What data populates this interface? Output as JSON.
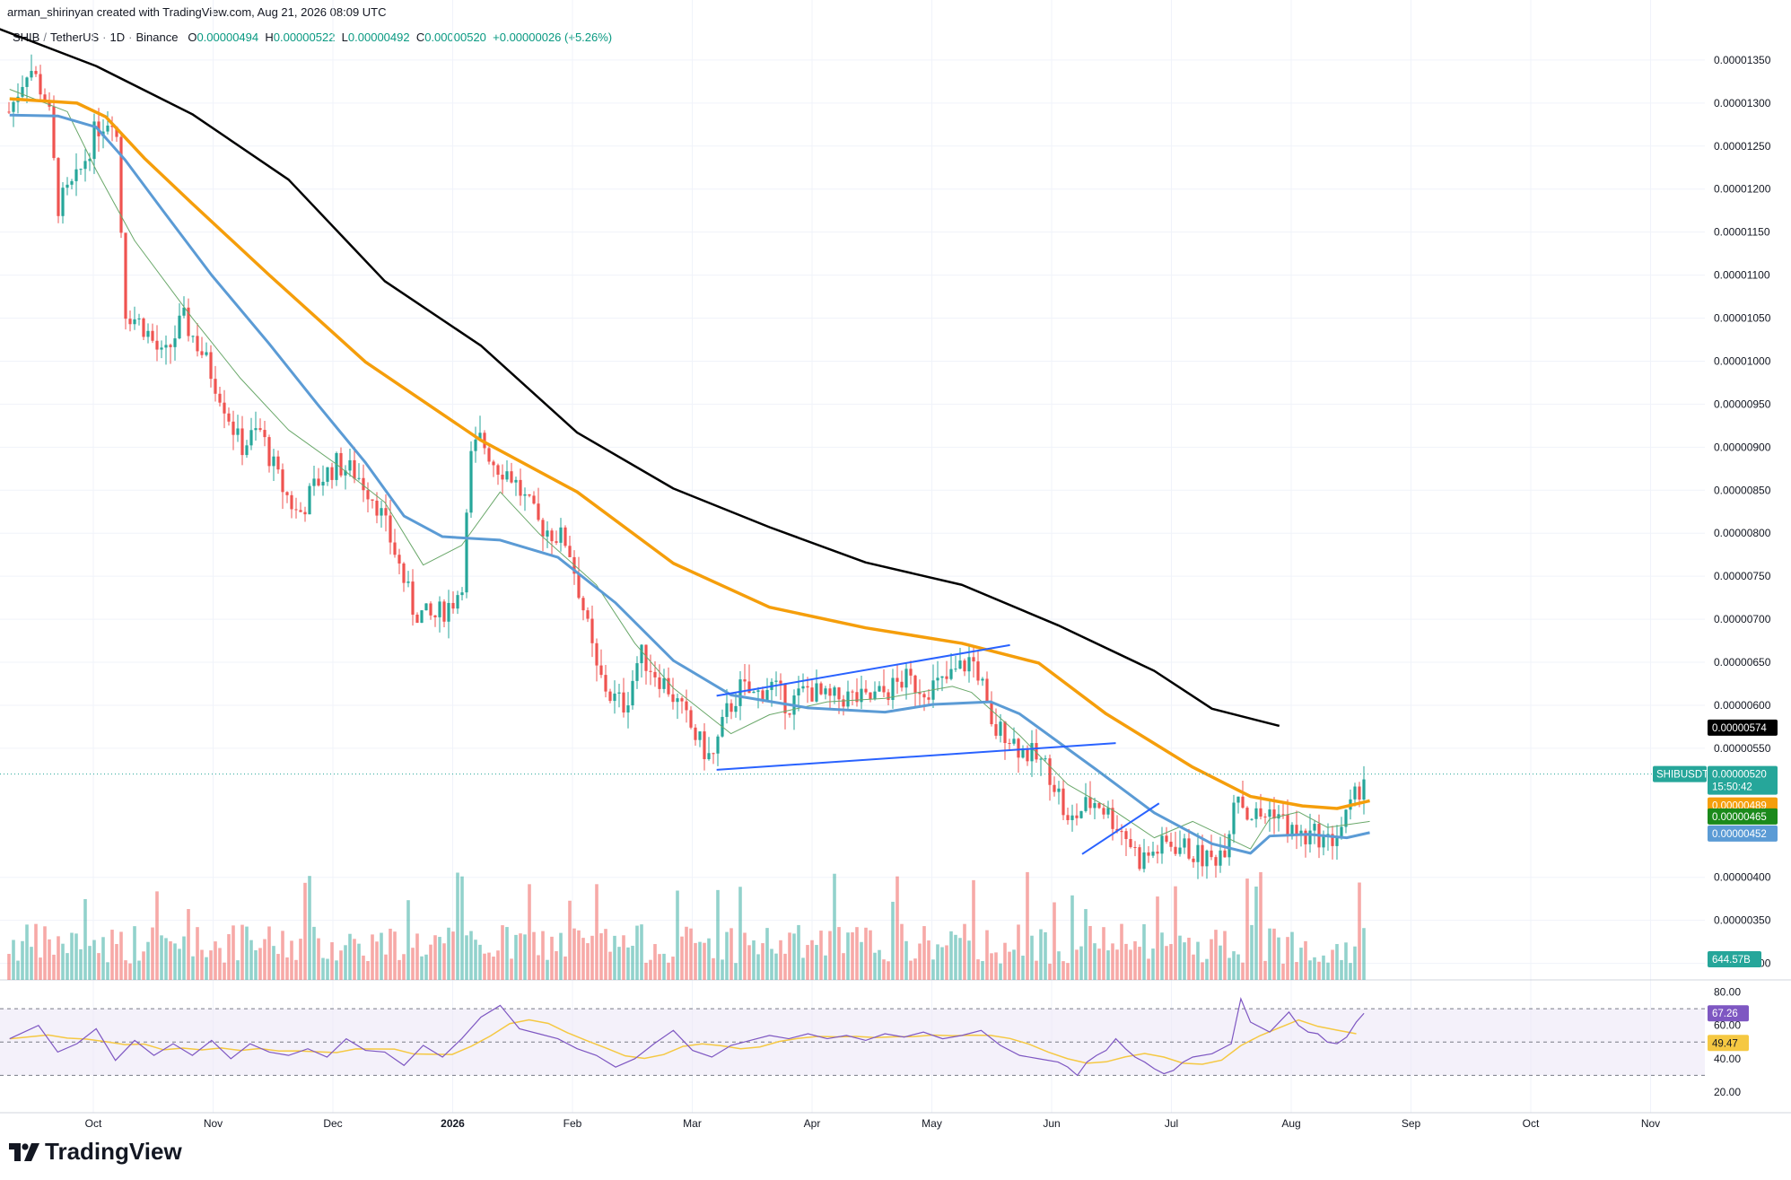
{
  "header": {
    "text": "arman_shirinyan created with TradingView.com, Aug 21, 2026 08:09 UTC"
  },
  "legend": {
    "symbol": "SHIB",
    "quote": "TetherUS",
    "interval": "1D",
    "exchange": "Binance",
    "open_label": "O",
    "open": "0.00000494",
    "high_label": "H",
    "high": "0.00000522",
    "low_label": "L",
    "low": "0.00000492",
    "close_label": "C",
    "close": "0.00000520",
    "change": "+0.00000026 (+5.26%)"
  },
  "brand": {
    "name": "TradingView"
  },
  "colors": {
    "up": "#26a69a",
    "down": "#ef5350",
    "sma200": "#000000",
    "sma100": "#f59e0b",
    "sma50": "#5b9bd5",
    "sma20": "#6aa86a",
    "trendline": "#2962ff",
    "rsi": "#7e57c2",
    "rsi_ma": "#f5c842",
    "rsi_band": "#ede7f6"
  },
  "chart_data": {
    "type": "candlestick",
    "price_axis": {
      "ticks": [
        "0.00001350",
        "0.00001300",
        "0.00001250",
        "0.00001200",
        "0.00001150",
        "0.00001100",
        "0.00001050",
        "0.00001000",
        "0.00000950",
        "0.00000900",
        "0.00000850",
        "0.00000800",
        "0.00000750",
        "0.00000700",
        "0.00000650",
        "0.00000600",
        "0.00000550",
        "0.00000400",
        "0.00000350",
        "0.00000300"
      ],
      "range": [
        2.86e-06,
        1.376e-05
      ]
    },
    "time_axis": {
      "labels": [
        "Oct",
        "Nov",
        "Dec",
        "2026",
        "Feb",
        "Mar",
        "Apr",
        "May",
        "Jun",
        "Jul",
        "Aug",
        "Sep",
        "Oct",
        "Nov"
      ],
      "bold": [
        "2026"
      ]
    },
    "tags": {
      "sma200": "0.00000574",
      "symbol_name": "SHIBUSDT",
      "last_price": "0.00000520",
      "countdown": "15:50:42",
      "sma100": "0.00000489",
      "sma20": "0.00000465",
      "sma50": "0.00000452",
      "volume": "644.57B"
    },
    "rsi": {
      "axis_ticks": [
        "80.00",
        "60.00",
        "40.00",
        "20.00"
      ],
      "range": [
        13,
        83
      ],
      "band": [
        30,
        70
      ],
      "value": "67.26",
      "ma_value": "49.47"
    },
    "ma_lines": {
      "sma200": [
        [
          -5,
          1.388e-05
        ],
        [
          100,
          1.343e-05
        ],
        [
          200,
          1.287e-05
        ],
        [
          300,
          1.211e-05
        ],
        [
          400,
          1.093e-05
        ],
        [
          500,
          1.018e-05
        ],
        [
          600,
          9.17e-06
        ],
        [
          700,
          8.52e-06
        ],
        [
          800,
          8.07e-06
        ],
        [
          900,
          7.66e-06
        ],
        [
          1000,
          7.4e-06
        ],
        [
          1100,
          6.93e-06
        ],
        [
          1200,
          6.4e-06
        ],
        [
          1260,
          5.96e-06
        ],
        [
          1330,
          5.76e-06
        ]
      ],
      "sma100": [
        [
          10,
          1.305e-05
        ],
        [
          80,
          1.3e-05
        ],
        [
          110,
          1.284e-05
        ],
        [
          150,
          1.236e-05
        ],
        [
          200,
          1.183e-05
        ],
        [
          280,
          1.1e-05
        ],
        [
          380,
          9.99e-06
        ],
        [
          500,
          9.08e-06
        ],
        [
          600,
          8.48e-06
        ],
        [
          700,
          7.65e-06
        ],
        [
          800,
          7.14e-06
        ],
        [
          900,
          6.9e-06
        ],
        [
          1000,
          6.72e-06
        ],
        [
          1080,
          6.49e-06
        ],
        [
          1150,
          5.9e-06
        ],
        [
          1240,
          5.28e-06
        ],
        [
          1300,
          4.94e-06
        ],
        [
          1354,
          4.83e-06
        ],
        [
          1390,
          4.8e-06
        ],
        [
          1424,
          4.89e-06
        ]
      ],
      "sma50": [
        [
          10,
          1.286e-05
        ],
        [
          60,
          1.285e-05
        ],
        [
          100,
          1.272e-05
        ],
        [
          130,
          1.234e-05
        ],
        [
          170,
          1.174e-05
        ],
        [
          220,
          1.1e-05
        ],
        [
          280,
          1.02e-05
        ],
        [
          330,
          9.5e-06
        ],
        [
          380,
          8.82e-06
        ],
        [
          420,
          8.2e-06
        ],
        [
          460,
          7.96e-06
        ],
        [
          520,
          7.92e-06
        ],
        [
          580,
          7.72e-06
        ],
        [
          640,
          7.19e-06
        ],
        [
          700,
          6.52e-06
        ],
        [
          760,
          6.12e-06
        ],
        [
          840,
          5.97e-06
        ],
        [
          920,
          5.92e-06
        ],
        [
          970,
          6.01e-06
        ],
        [
          1030,
          6.04e-06
        ],
        [
          1060,
          5.9e-06
        ],
        [
          1140,
          5.25e-06
        ],
        [
          1200,
          4.75e-06
        ],
        [
          1260,
          4.39e-06
        ],
        [
          1300,
          4.28e-06
        ],
        [
          1320,
          4.48e-06
        ],
        [
          1360,
          4.5e-06
        ],
        [
          1400,
          4.46e-06
        ],
        [
          1424,
          4.52e-06
        ]
      ],
      "sma20": [
        [
          10,
          1.316e-05
        ],
        [
          70,
          1.29e-05
        ],
        [
          100,
          1.222e-05
        ],
        [
          140,
          1.14e-05
        ],
        [
          200,
          1.05e-05
        ],
        [
          250,
          9.8e-06
        ],
        [
          300,
          9.2e-06
        ],
        [
          350,
          8.8e-06
        ],
        [
          400,
          8.36e-06
        ],
        [
          440,
          7.63e-06
        ],
        [
          480,
          7.86e-06
        ],
        [
          520,
          8.48e-06
        ],
        [
          560,
          8e-06
        ],
        [
          620,
          7.4e-06
        ],
        [
          660,
          6.72e-06
        ],
        [
          700,
          6.2e-06
        ],
        [
          760,
          5.67e-06
        ],
        [
          800,
          5.89e-06
        ],
        [
          860,
          6.04e-06
        ],
        [
          920,
          6.08e-06
        ],
        [
          990,
          6.22e-06
        ],
        [
          1010,
          6.15e-06
        ],
        [
          1060,
          5.65e-06
        ],
        [
          1110,
          5.08e-06
        ],
        [
          1160,
          4.76e-06
        ],
        [
          1200,
          4.46e-06
        ],
        [
          1240,
          4.65e-06
        ],
        [
          1300,
          4.33e-06
        ],
        [
          1320,
          4.68e-06
        ],
        [
          1350,
          4.76e-06
        ],
        [
          1380,
          4.58e-06
        ],
        [
          1424,
          4.65e-06
        ]
      ]
    },
    "trendlines": [
      {
        "from": [
          745,
          6.11e-06
        ],
        "to": [
          1050,
          6.7e-06
        ]
      },
      {
        "from": [
          745,
          5.25e-06
        ],
        "to": [
          1160,
          5.56e-06
        ]
      },
      {
        "from": [
          1125,
          4.27e-06
        ],
        "to": [
          1205,
          4.86e-06
        ]
      }
    ],
    "price_path": [
      [
        10,
        1.29e-05
      ],
      [
        30,
        1.345e-05
      ],
      [
        50,
        1.3e-05
      ],
      [
        60,
        1.18e-05
      ],
      [
        80,
        1.21e-05
      ],
      [
        100,
        1.27e-05
      ],
      [
        120,
        1.29e-05
      ],
      [
        130,
        1.06e-05
      ],
      [
        150,
        1.04e-05
      ],
      [
        170,
        1e-05
      ],
      [
        190,
        1.05e-05
      ],
      [
        210,
        1.01e-05
      ],
      [
        230,
        9.6e-06
      ],
      [
        250,
        9e-06
      ],
      [
        270,
        9.2e-06
      ],
      [
        290,
        8.6e-06
      ],
      [
        310,
        8.2e-06
      ],
      [
        330,
        8.6e-06
      ],
      [
        350,
        8.8e-06
      ],
      [
        370,
        8.7e-06
      ],
      [
        390,
        8.4e-06
      ],
      [
        410,
        7.8e-06
      ],
      [
        430,
        7.1e-06
      ],
      [
        450,
        7e-06
      ],
      [
        470,
        7.2e-06
      ],
      [
        480,
        7.4e-06
      ],
      [
        490,
        8.9e-06
      ],
      [
        500,
        9.1e-06
      ],
      [
        515,
        8.8e-06
      ],
      [
        530,
        8.7e-06
      ],
      [
        545,
        8.4e-06
      ],
      [
        560,
        8.1e-06
      ],
      [
        575,
        8e-06
      ],
      [
        590,
        7.9e-06
      ],
      [
        605,
        7.2e-06
      ],
      [
        620,
        6.4e-06
      ],
      [
        635,
        6.1e-06
      ],
      [
        650,
        6e-06
      ],
      [
        665,
        6.6e-06
      ],
      [
        680,
        6.4e-06
      ],
      [
        695,
        6.2e-06
      ],
      [
        710,
        5.9e-06
      ],
      [
        725,
        5.6e-06
      ],
      [
        740,
        5.35e-06
      ],
      [
        755,
        5.9e-06
      ],
      [
        770,
        6.2e-06
      ],
      [
        785,
        6.1e-06
      ],
      [
        800,
        6.25e-06
      ],
      [
        820,
        6e-06
      ],
      [
        840,
        6.2e-06
      ],
      [
        860,
        6.05e-06
      ],
      [
        880,
        6.1e-06
      ],
      [
        900,
        6.05e-06
      ],
      [
        920,
        6.15e-06
      ],
      [
        940,
        6.3e-06
      ],
      [
        960,
        6.2e-06
      ],
      [
        980,
        6.25e-06
      ],
      [
        1000,
        6.45e-06
      ],
      [
        1010,
        6.55e-06
      ],
      [
        1020,
        6.3e-06
      ],
      [
        1030,
        5.7e-06
      ],
      [
        1045,
        5.7e-06
      ],
      [
        1060,
        5.5e-06
      ],
      [
        1075,
        5.4e-06
      ],
      [
        1090,
        5.25e-06
      ],
      [
        1100,
        5e-06
      ],
      [
        1110,
        4.6e-06
      ],
      [
        1125,
        4.8e-06
      ],
      [
        1140,
        4.9e-06
      ],
      [
        1155,
        4.7e-06
      ],
      [
        1170,
        4.5e-06
      ],
      [
        1185,
        4.2e-06
      ],
      [
        1200,
        4.3e-06
      ],
      [
        1215,
        4.4e-06
      ],
      [
        1230,
        4.35e-06
      ],
      [
        1245,
        4.25e-06
      ],
      [
        1260,
        4.2e-06
      ],
      [
        1275,
        4.4e-06
      ],
      [
        1285,
        5.1e-06
      ],
      [
        1295,
        4.75e-06
      ],
      [
        1310,
        4.7e-06
      ],
      [
        1325,
        4.8e-06
      ],
      [
        1340,
        4.55e-06
      ],
      [
        1355,
        4.45e-06
      ],
      [
        1370,
        4.5e-06
      ],
      [
        1380,
        4.4e-06
      ],
      [
        1390,
        4.5e-06
      ],
      [
        1400,
        4.7e-06
      ],
      [
        1410,
        4.94e-06
      ],
      [
        1418,
        5.2e-06
      ]
    ],
    "rsi_path": [
      [
        10,
        52
      ],
      [
        40,
        60
      ],
      [
        60,
        44
      ],
      [
        80,
        49
      ],
      [
        100,
        58
      ],
      [
        120,
        39
      ],
      [
        140,
        51
      ],
      [
        160,
        42
      ],
      [
        180,
        49
      ],
      [
        200,
        42
      ],
      [
        220,
        51
      ],
      [
        240,
        40
      ],
      [
        260,
        49
      ],
      [
        280,
        44
      ],
      [
        300,
        42
      ],
      [
        320,
        46
      ],
      [
        340,
        41
      ],
      [
        360,
        52
      ],
      [
        380,
        45
      ],
      [
        400,
        44
      ],
      [
        420,
        36
      ],
      [
        440,
        48
      ],
      [
        460,
        41
      ],
      [
        480,
        52
      ],
      [
        500,
        65
      ],
      [
        520,
        72
      ],
      [
        540,
        58
      ],
      [
        560,
        55
      ],
      [
        580,
        52
      ],
      [
        600,
        46
      ],
      [
        620,
        42
      ],
      [
        640,
        35
      ],
      [
        660,
        40
      ],
      [
        680,
        49
      ],
      [
        700,
        57
      ],
      [
        720,
        45
      ],
      [
        740,
        41
      ],
      [
        760,
        48
      ],
      [
        780,
        51
      ],
      [
        800,
        54
      ],
      [
        820,
        52
      ],
      [
        840,
        55
      ],
      [
        860,
        52
      ],
      [
        880,
        54
      ],
      [
        900,
        51
      ],
      [
        920,
        55
      ],
      [
        940,
        53
      ],
      [
        960,
        56
      ],
      [
        980,
        52
      ],
      [
        1000,
        54
      ],
      [
        1020,
        57
      ],
      [
        1040,
        48
      ],
      [
        1060,
        42
      ],
      [
        1080,
        40
      ],
      [
        1100,
        38
      ],
      [
        1110,
        35
      ],
      [
        1120,
        30
      ],
      [
        1130,
        38
      ],
      [
        1140,
        42
      ],
      [
        1150,
        45
      ],
      [
        1160,
        52
      ],
      [
        1170,
        46
      ],
      [
        1180,
        41
      ],
      [
        1190,
        38
      ],
      [
        1200,
        34
      ],
      [
        1210,
        31
      ],
      [
        1220,
        33
      ],
      [
        1230,
        38
      ],
      [
        1240,
        41
      ],
      [
        1260,
        43
      ],
      [
        1280,
        49
      ],
      [
        1290,
        76
      ],
      [
        1300,
        62
      ],
      [
        1320,
        56
      ],
      [
        1340,
        68
      ],
      [
        1350,
        60
      ],
      [
        1360,
        56
      ],
      [
        1370,
        55
      ],
      [
        1380,
        50
      ],
      [
        1390,
        49
      ],
      [
        1400,
        53
      ],
      [
        1410,
        62
      ],
      [
        1418,
        67.26
      ]
    ]
  }
}
